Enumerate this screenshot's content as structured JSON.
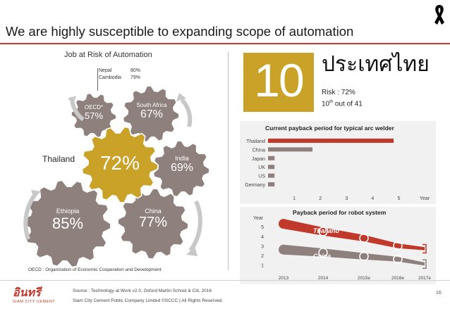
{
  "slide": {
    "title": "We are highly susceptible to expanding scope of automation",
    "page_number": "16",
    "colors": {
      "accent_red": "#c0392b",
      "gold": "#c9a227",
      "gear_gray": "#8e807d",
      "gear_highlight": "#c9a227"
    }
  },
  "left": {
    "heading": "Job at Risk of Automation",
    "note_labels": [
      "Nepal",
      "Cambodia"
    ],
    "note_values": [
      "80%",
      "79%"
    ],
    "thailand_label": "Thailand",
    "gears": [
      {
        "name": "OECD*",
        "value": "57%"
      },
      {
        "name": "South Africa",
        "value": "67%"
      },
      {
        "name": "",
        "value": "72%"
      },
      {
        "name": "India",
        "value": "69%"
      },
      {
        "name": "Ethiopia",
        "value": "85%"
      },
      {
        "name": "China",
        "value": "77%"
      }
    ],
    "footnote": "OECD : Organization of Economic Cooperation and Development"
  },
  "right": {
    "rank": "10",
    "country": "ประเทศไทย",
    "risk": "Risk : 72%",
    "rank_text": "10",
    "rank_suffix": "th",
    "rank_tail": " out of 41"
  },
  "chart_data": [
    {
      "type": "bar",
      "title": "Current payback period for typical arc welder",
      "orientation": "horizontal",
      "categories": [
        "Thailand",
        "China",
        "Japan",
        "UK",
        "US",
        "Germany"
      ],
      "values": [
        4.8,
        1.7,
        0.25,
        0.25,
        0.25,
        0.25
      ],
      "xlabel": "Year",
      "xticks": [
        "1",
        "2",
        "3",
        "4",
        "5"
      ],
      "xlim": [
        0,
        5.5
      ],
      "colors": [
        "#c0392b",
        "#8e807d",
        "#8e807d",
        "#8e807d",
        "#8e807d",
        "#8e807d"
      ]
    },
    {
      "type": "line",
      "title": "Payback period for robot system",
      "ylabel": "Year",
      "x": [
        "2013",
        "2014",
        "2015e",
        "2016e",
        "2017e"
      ],
      "yticks": [
        "1",
        "2",
        "3",
        "4",
        "5"
      ],
      "ylim": [
        0.6,
        5.6
      ],
      "series": [
        {
          "name": "Thailand",
          "values": [
            5.3,
            4.5,
            3.8,
            3.0,
            2.7
          ],
          "color": "#c0392b"
        },
        {
          "name": "China",
          "values": [
            2.6,
            2.3,
            1.9,
            1.6,
            1.1
          ],
          "color": "#8e807d"
        }
      ]
    }
  ],
  "footer": {
    "source": "Source : Technology at Work v2.0, Oxford Martin School & Citi, 2016",
    "company": "Siam City Cement Public Company Limited ©SCCC | All Rights Reserved.",
    "logo_text": "อินทรี",
    "logo_sub": "SIAM CITY CEMENT"
  }
}
